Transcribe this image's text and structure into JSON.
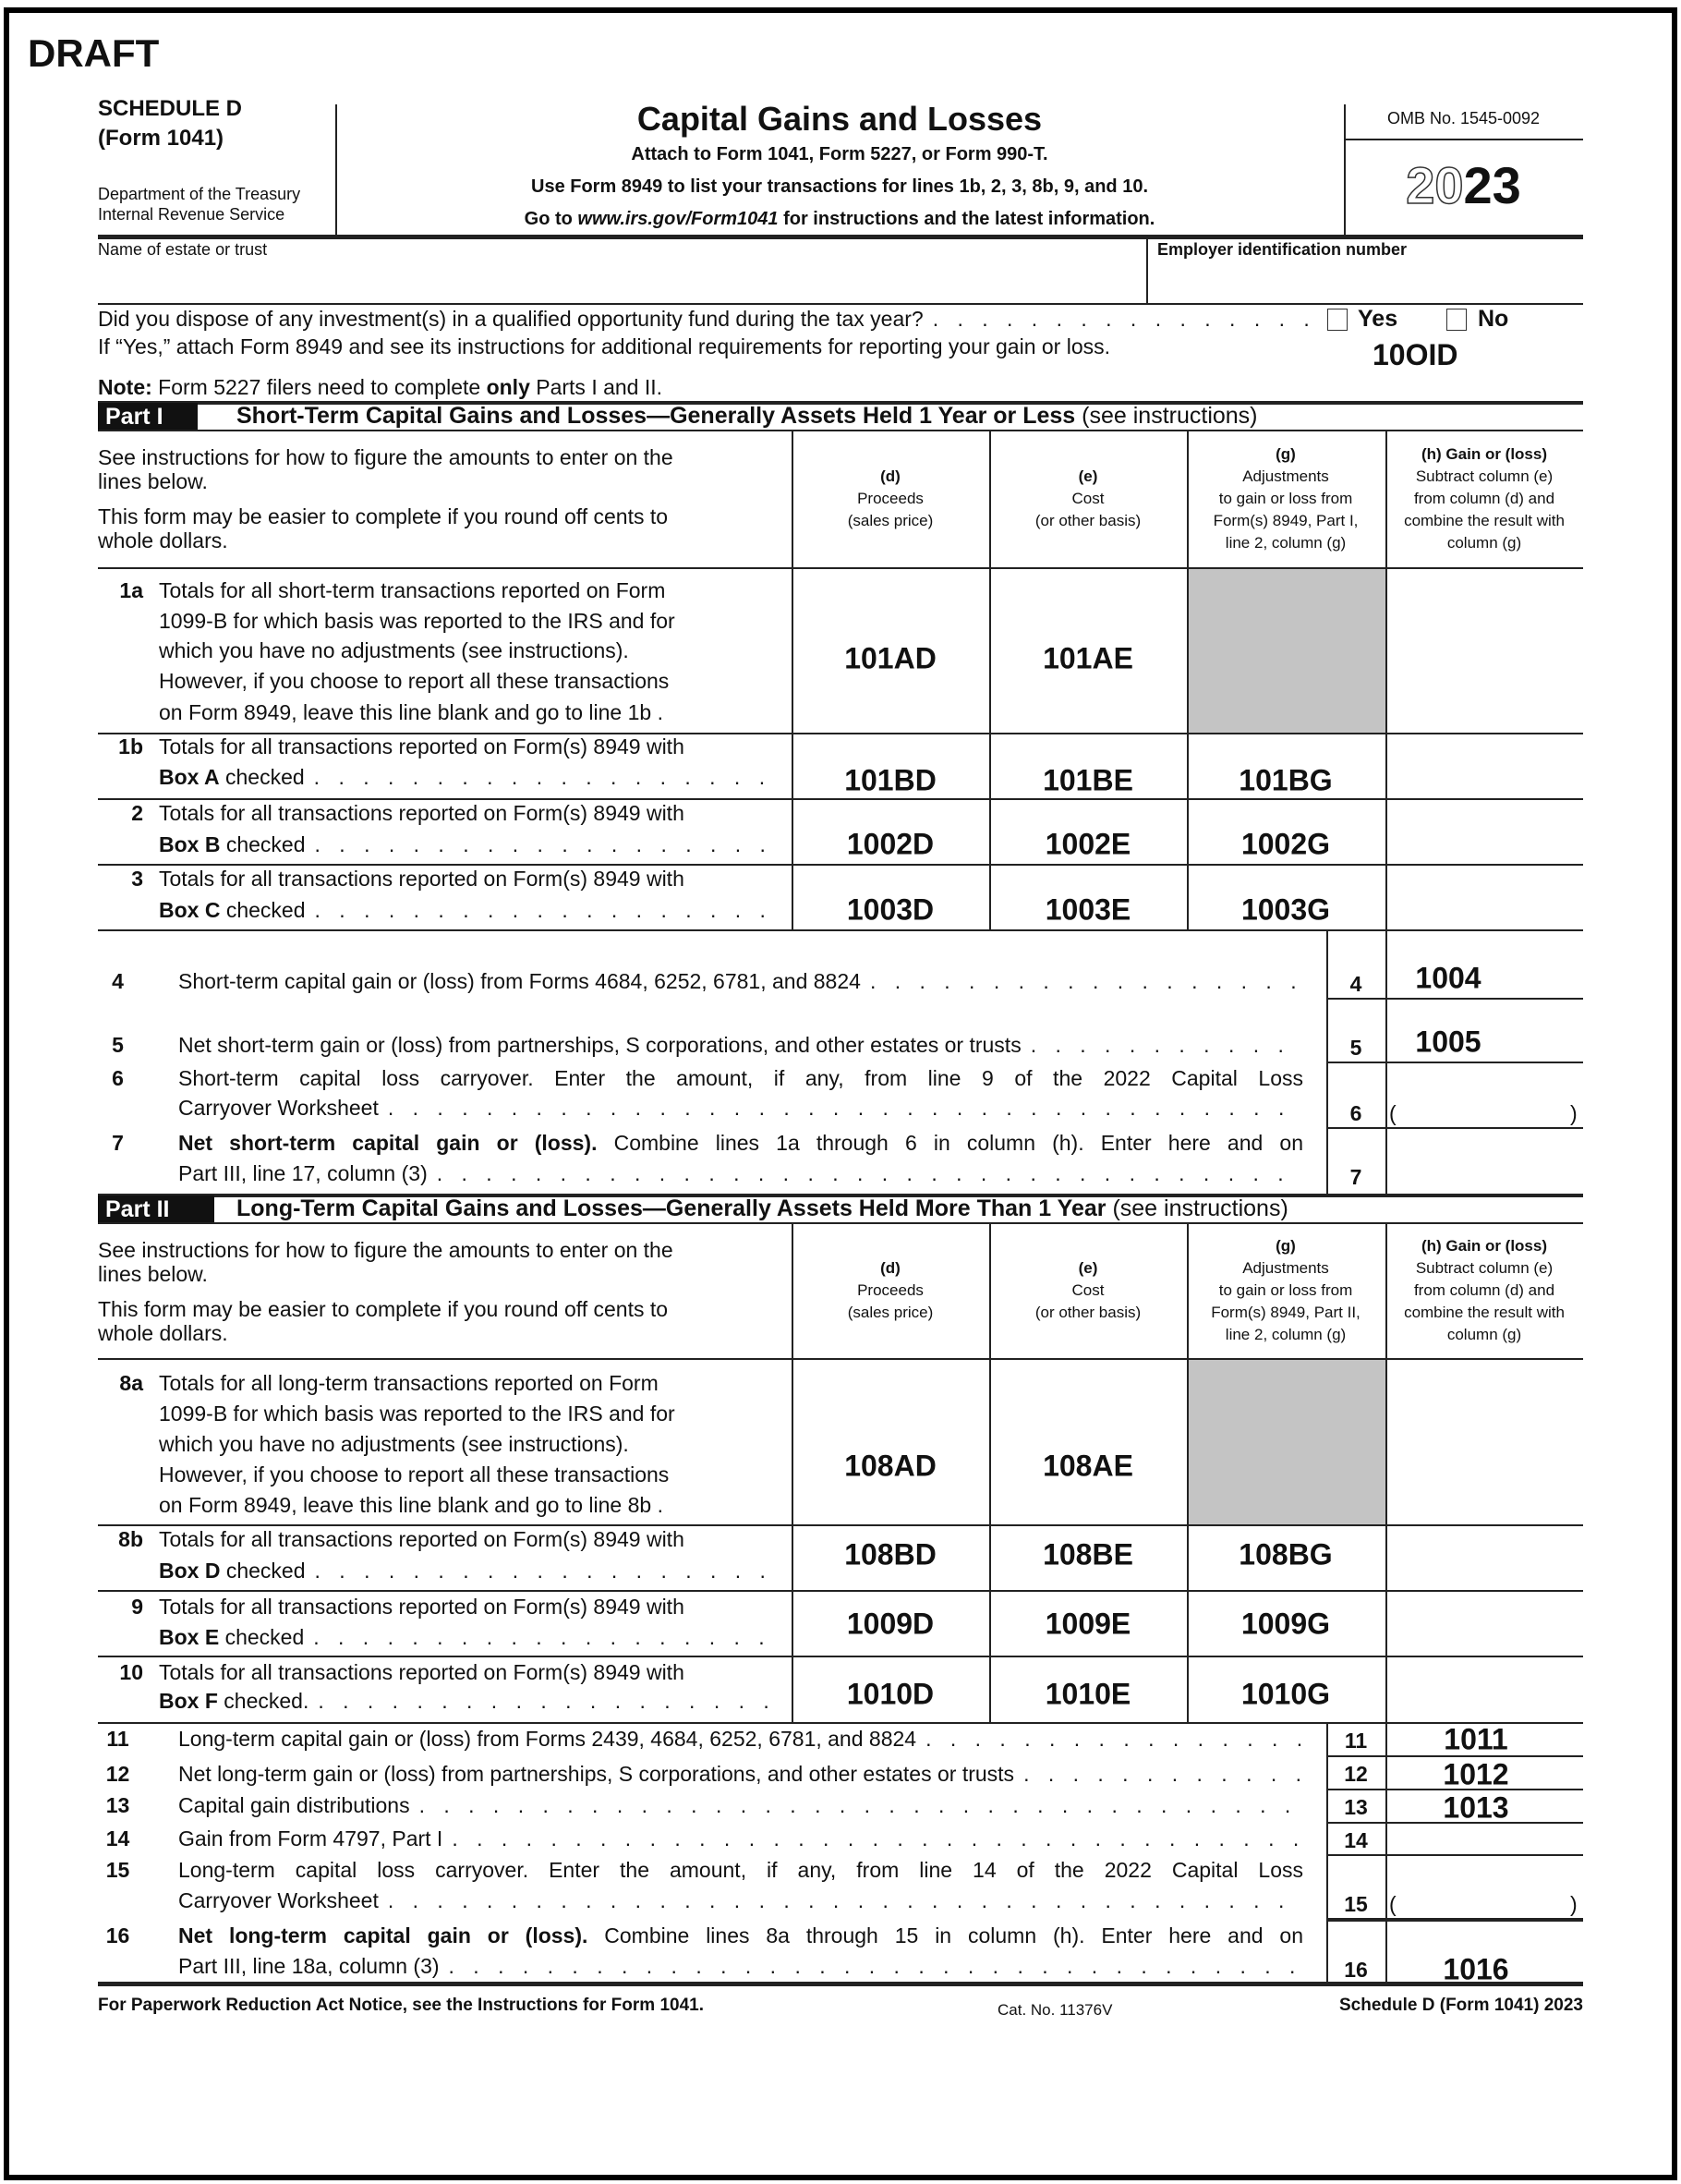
{
  "draft_label": "DRAFT",
  "header": {
    "schedule": "SCHEDULE D",
    "form": "(Form 1041)",
    "dept1": "Department of the Treasury",
    "dept2": "Internal Revenue Service",
    "title": "Capital Gains and Losses",
    "sub1": "Attach to Form 1041, Form 5227, or Form 990-T.",
    "sub2": "Use Form 8949 to list your transactions for lines 1b, 2, 3, 8b, 9, and 10.",
    "sub3_pre": "Go to ",
    "sub3_link": "www.irs.gov/Form1041",
    "sub3_post": " for instructions and the latest information.",
    "omb": "OMB No. 1545-0092",
    "year_outline": "20",
    "year_bold": "23"
  },
  "name_label": "Name of estate or trust",
  "ein_label": "Employer identification number",
  "question": {
    "line1": "Did you dispose of any investment(s) in a qualified opportunity fund during the tax year?",
    "line2": "If “Yes,” attach Form 8949 and see its instructions for additional requirements for reporting your gain or loss.",
    "yes": "Yes",
    "no": "No",
    "yes_checked": false,
    "no_checked": false,
    "code": "10OID"
  },
  "note": {
    "bold": "Note:",
    "pre": " Form 5227 filers need to complete ",
    "only": "only",
    "post": " Parts I and II."
  },
  "columns_intro": {
    "p1": [
      "See instructions for how to figure the amounts to enter on the",
      "lines below."
    ],
    "p2": [
      "This form may be easier to complete if you round off cents to",
      "whole dollars."
    ]
  },
  "part1": {
    "label": "Part I",
    "title": "Short-Term Capital Gains and Losses—Generally Assets Held 1 Year or Less",
    "title_suffix": " (see instructions)",
    "columns": [
      {
        "head": "(d)",
        "lines": [
          "Proceeds",
          "(sales price)"
        ]
      },
      {
        "head": "(e)",
        "lines": [
          "Cost",
          "(or other basis)"
        ]
      },
      {
        "head": "(g)",
        "lines": [
          "Adjustments",
          "to gain or loss from",
          "Form(s) 8949, Part I,",
          "line 2, column (g)"
        ]
      },
      {
        "head": "(h) Gain or (loss)",
        "lines": [
          "Subtract column (e)",
          "from column (d) and",
          "combine the result with",
          "column (g)"
        ]
      }
    ],
    "rows": [
      {
        "num": "1a",
        "lines": [
          {
            "bold": "",
            "text": "Totals for all short-term transactions reported on Form"
          },
          {
            "bold": "",
            "text": "1099-B for which basis was reported to the IRS and for"
          },
          {
            "bold": "",
            "text": "which you have no adjustments (see instructions)."
          },
          {
            "bold": "",
            "text": "However, if you choose to report all these transactions"
          },
          {
            "bold": "",
            "text": "on Form 8949, leave this line blank and go to line 1b   ."
          }
        ],
        "d": "101AD",
        "e": "101AE",
        "g": "",
        "g_shaded": true
      },
      {
        "num": "1b",
        "lines": [
          {
            "bold": "",
            "text": "Totals for all transactions reported on Form(s) 8949 with"
          },
          {
            "bold": "Box A",
            "text": " checked",
            "leader": true
          }
        ],
        "d": "101BD",
        "e": "101BE",
        "g": "101BG"
      },
      {
        "num": "2",
        "lines": [
          {
            "bold": "",
            "text": "Totals for all transactions reported on Form(s) 8949 with"
          },
          {
            "bold": "Box B",
            "text": " checked",
            "leader": true
          }
        ],
        "d": "1002D",
        "e": "1002E",
        "g": "1002G"
      },
      {
        "num": "3",
        "lines": [
          {
            "bold": "",
            "text": "Totals for all transactions reported on Form(s) 8949 with"
          },
          {
            "bold": "Box C",
            "text": " checked",
            "leader": true
          }
        ],
        "d": "1003D",
        "e": "1003E",
        "g": "1003G"
      }
    ],
    "lines": [
      {
        "num": "4",
        "box": "4",
        "value": "1004",
        "lines": [
          {
            "bold": "",
            "text": "Short-term capital gain or (loss) from Forms 4684, 6252, 6781, and 8824",
            "leader": true
          }
        ]
      },
      {
        "num": "5",
        "box": "5",
        "value": "1005",
        "lines": [
          {
            "bold": "",
            "text": "Net short-term gain or (loss) from partnerships, S corporations, and other estates or trusts",
            "leader": true
          }
        ]
      },
      {
        "num": "6",
        "box": "6",
        "value": "",
        "paren": true,
        "lines": [
          {
            "bold": "",
            "text": "Short-term capital loss carryover. Enter the amount, if any, from line 9 of the 2022 Capital Loss",
            "justify": true
          },
          {
            "bold": "",
            "text": "Carryover Worksheet",
            "leader": true
          }
        ]
      },
      {
        "num": "7",
        "box": "7",
        "value": "",
        "lines": [
          {
            "bold": "Net short-term capital gain or (loss).",
            "text": " Combine lines 1a through 6 in column (h). Enter here and on",
            "justify": true
          },
          {
            "bold": "",
            "text": "Part III, line 17, column (3)",
            "leader": true
          }
        ]
      }
    ]
  },
  "part2": {
    "label": "Part II",
    "title": "Long-Term Capital Gains and Losses—Generally Assets Held More Than 1 Year",
    "title_suffix": " (see instructions)",
    "columns": [
      {
        "head": "(d)",
        "lines": [
          "Proceeds",
          "(sales price)"
        ]
      },
      {
        "head": "(e)",
        "lines": [
          "Cost",
          "(or other basis)"
        ]
      },
      {
        "head": "(g)",
        "lines": [
          "Adjustments",
          "to gain or loss from",
          "Form(s) 8949, Part II,",
          "line 2, column (g)"
        ]
      },
      {
        "head": "(h) Gain or (loss)",
        "lines": [
          "Subtract column (e)",
          "from column (d) and",
          "combine the result with",
          "column (g)"
        ]
      }
    ],
    "rows": [
      {
        "num": "8a",
        "lines": [
          {
            "bold": "",
            "text": "Totals for all long-term transactions reported on Form"
          },
          {
            "bold": "",
            "text": "1099-B for which basis was reported to the IRS and for"
          },
          {
            "bold": "",
            "text": "which you have no adjustments (see instructions)."
          },
          {
            "bold": "",
            "text": "However, if you choose to report all these transactions"
          },
          {
            "bold": "",
            "text": "on Form 8949, leave this line blank and go to line 8b   ."
          }
        ],
        "d": "108AD",
        "e": "108AE",
        "g": "",
        "g_shaded": true
      },
      {
        "num": "8b",
        "lines": [
          {
            "bold": "",
            "text": "Totals for all transactions reported on Form(s) 8949 with"
          },
          {
            "bold": "Box D",
            "text": " checked",
            "leader": true
          }
        ],
        "d": "108BD",
        "e": "108BE",
        "g": "108BG"
      },
      {
        "num": "9",
        "lines": [
          {
            "bold": "",
            "text": "Totals for all transactions reported on Form(s) 8949 with"
          },
          {
            "bold": "Box E",
            "text": " checked",
            "leader": true
          }
        ],
        "d": "1009D",
        "e": "1009E",
        "g": "1009G"
      },
      {
        "num": "10",
        "lines": [
          {
            "bold": "",
            "text": "Totals for all transactions reported on Form(s) 8949 with"
          },
          {
            "bold": "Box F",
            "text": " checked.",
            "leader": true
          }
        ],
        "d": "1010D",
        "e": "1010E",
        "g": "1010G"
      }
    ],
    "lines": [
      {
        "num": "11",
        "box": "11",
        "value": "1011",
        "lines": [
          {
            "bold": "",
            "text": "Long-term capital gain or (loss) from Forms 2439, 4684, 6252, 6781, and 8824",
            "leader": true
          }
        ]
      },
      {
        "num": "12",
        "box": "12",
        "value": "1012",
        "lines": [
          {
            "bold": "",
            "text": "Net long-term gain or (loss) from partnerships, S corporations, and other estates or trusts",
            "leader": true
          }
        ]
      },
      {
        "num": "13",
        "box": "13",
        "value": "1013",
        "lines": [
          {
            "bold": "",
            "text": "Capital gain distributions",
            "leader": true
          }
        ]
      },
      {
        "num": "14",
        "box": "14",
        "value": "",
        "lines": [
          {
            "bold": "",
            "text": "Gain from Form 4797, Part I",
            "leader": true
          }
        ]
      },
      {
        "num": "15",
        "box": "15",
        "value": "",
        "paren": true,
        "lines": [
          {
            "bold": "",
            "text": "Long-term capital loss carryover. Enter the amount, if any, from line 14 of the 2022 Capital Loss",
            "justify": true
          },
          {
            "bold": "",
            "text": "Carryover Worksheet",
            "leader": true
          }
        ]
      },
      {
        "num": "16",
        "box": "16",
        "value": "1016",
        "lines": [
          {
            "bold": "Net long-term capital gain or (loss).",
            "text": " Combine lines 8a through 15 in column (h). Enter here and on",
            "justify": true
          },
          {
            "bold": "",
            "text": "Part III, line 18a, column (3)",
            "leader": true
          }
        ]
      }
    ]
  },
  "footer": {
    "left": "For Paperwork Reduction Act Notice, see the Instructions for Form 1041.",
    "cat": "Cat. No. 11376V",
    "right": "Schedule D (Form 1041) 2023"
  }
}
